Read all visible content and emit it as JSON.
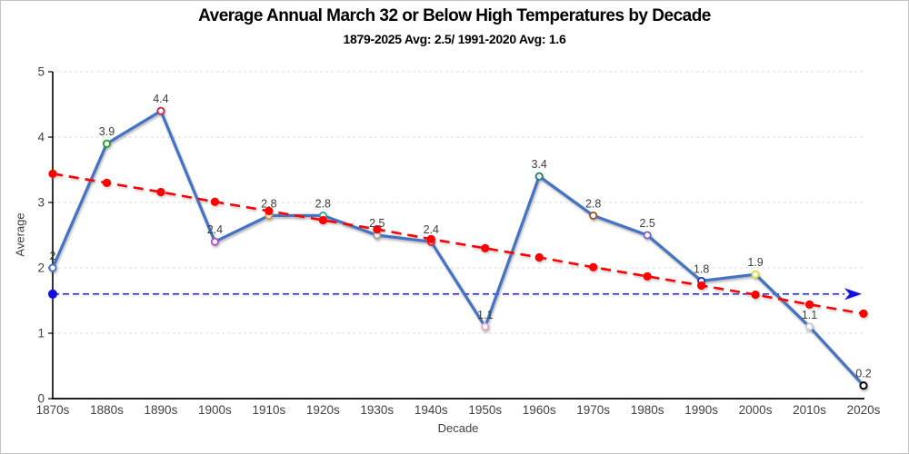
{
  "frame": {
    "background": "#ffffff",
    "border_color": "#c3c3c3"
  },
  "chart_data": {
    "type": "line",
    "title": "Average Annual March 32 or Below High Temperatures by Decade",
    "subtitle": "1879-2025 Avg: 2.5/ 1991-2020 Avg: 1.6",
    "xlabel": "Decade",
    "ylabel": "Average",
    "ylim": [
      0,
      5
    ],
    "yticks": [
      0,
      1,
      2,
      3,
      4,
      5
    ],
    "ytick_labels": [
      "0",
      "1",
      "2",
      "3",
      "4",
      "5"
    ],
    "grid": true,
    "legend": false,
    "categories": [
      "1870s",
      "1880s",
      "1890s",
      "1900s",
      "1910s",
      "1920s",
      "1930s",
      "1940s",
      "1950s",
      "1960s",
      "1970s",
      "1980s",
      "1990s",
      "2000s",
      "2010s",
      "2020s"
    ],
    "main_series": {
      "color": "#4472C4",
      "values": [
        2,
        3.9,
        4.4,
        2.4,
        2.8,
        2.8,
        2.5,
        2.4,
        1.1,
        3.4,
        2.8,
        2.5,
        1.8,
        1.9,
        1.1,
        0.2
      ],
      "point_labels": [
        "2",
        "3.9",
        "4.4",
        "2.4",
        "2.8",
        "2.8",
        "2.5",
        "2.4",
        "1.1",
        "3.4",
        "2.8",
        "2.5",
        "1.8",
        "1.9",
        "1.1",
        "0.2"
      ],
      "marker_colors": [
        "#4472C4",
        "#2EA12E",
        "#C8294A",
        "#B44FC8",
        "#DE9A3C",
        "#2FA8A4",
        "#A0A0A0",
        "#FF0000",
        "#E8A8BC",
        "#267E78",
        "#9A5B2D",
        "#7E62D1",
        "#2038C8",
        "#DCDC3C",
        "#C9C9D2",
        "#000000"
      ]
    },
    "trend_series": {
      "color": "#FF0000",
      "values": [
        3.44,
        3.3,
        3.16,
        3.01,
        2.87,
        2.73,
        2.59,
        2.44,
        2.3,
        2.16,
        2.01,
        1.87,
        1.73,
        1.59,
        1.44,
        1.3
      ]
    },
    "reference_line": {
      "color": "#0F0FE6",
      "value": 1.6,
      "has_start_dot": true,
      "has_end_arrow": true
    },
    "colors": {
      "grid": "#D9D9D9",
      "axis": "#000000",
      "tick_label": "#404040",
      "data_label": "#3C3C3C"
    }
  }
}
